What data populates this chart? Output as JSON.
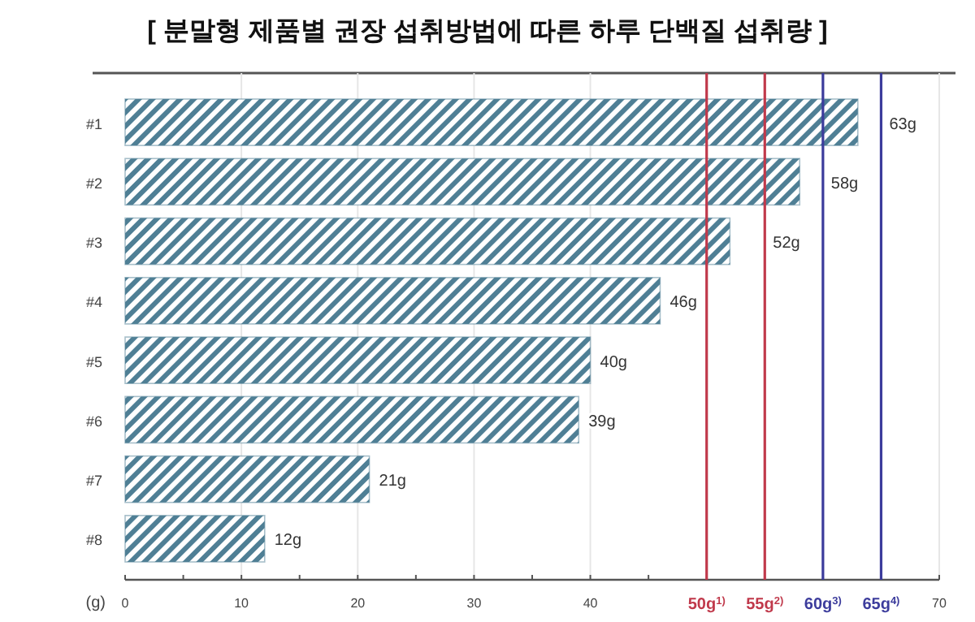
{
  "chart_data": {
    "type": "bar",
    "orientation": "horizontal",
    "title": "[ 분말형 제품별 권장 섭취방법에 따른 하루 단백질 섭취량 ]",
    "xlabel": "(g)",
    "categories": [
      "#1",
      "#2",
      "#3",
      "#4",
      "#5",
      "#6",
      "#7",
      "#8"
    ],
    "values": [
      63,
      58,
      52,
      46,
      40,
      39,
      21,
      12
    ],
    "value_labels": [
      "63g",
      "58g",
      "52g",
      "46g",
      "40g",
      "39g",
      "21g",
      "12g"
    ],
    "color": "#4f7f95",
    "xlim": [
      0,
      70
    ],
    "xticks": [
      0,
      {
        "value": 5,
        "label": null
      },
      10,
      {
        "value": 15,
        "label": null
      },
      20,
      {
        "value": 25,
        "label": null
      },
      30,
      {
        "value": 35,
        "label": null
      },
      40,
      {
        "value": 45,
        "label": null
      },
      70
    ],
    "grid": "x",
    "ref_lines": [
      {
        "axis": "x",
        "value": 50,
        "label": "50g$^{1)}$",
        "color": "#c0394b"
      },
      {
        "axis": "x",
        "value": 55,
        "label": "55g$^{2)}$",
        "color": "#c0394b"
      },
      {
        "axis": "x",
        "value": 60,
        "label": "60g$^{3)}$",
        "color": "#3c3c9c"
      },
      {
        "axis": "x",
        "value": 65,
        "label": "65g$^{4)}$",
        "color": "#3c3c9c"
      }
    ]
  }
}
